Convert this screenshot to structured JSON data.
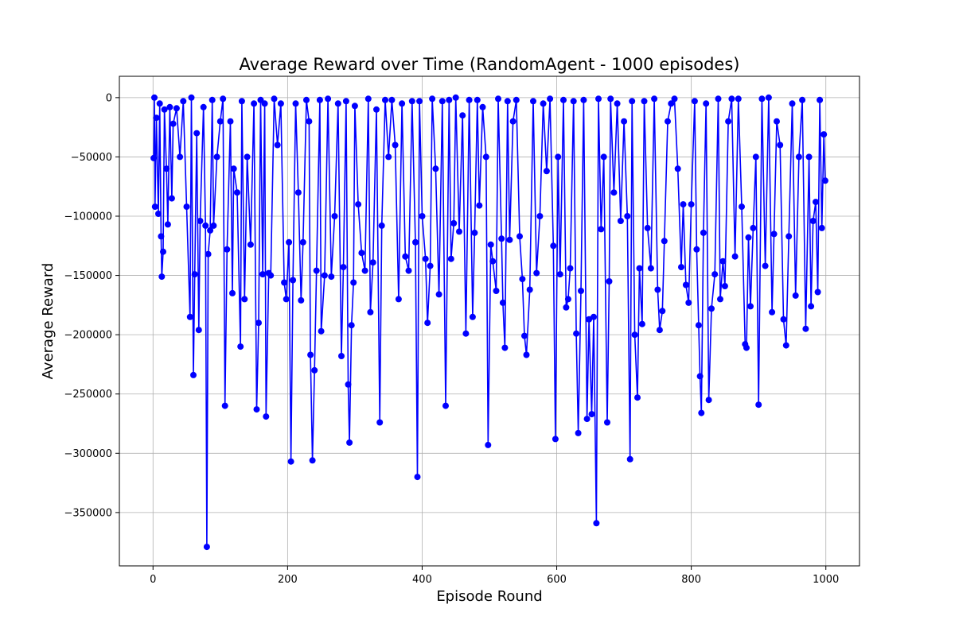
{
  "chart_data": {
    "type": "line",
    "title": "Average Reward over Time (RandomAgent - 1000 episodes)",
    "xlabel": "Episode Round",
    "ylabel": "Average Reward",
    "xlim": [
      -50,
      1050
    ],
    "ylim": [
      -395000,
      18000
    ],
    "xticks": [
      0,
      200,
      400,
      600,
      800,
      1000
    ],
    "yticks": [
      0,
      -50000,
      -100000,
      -150000,
      -200000,
      -250000,
      -300000,
      -350000
    ],
    "xtick_labels": [
      "0",
      "200",
      "400",
      "600",
      "800",
      "1000"
    ],
    "ytick_labels": [
      "0",
      "−50000",
      "−100000",
      "−150000",
      "−200000",
      "−250000",
      "−300000",
      "−350000"
    ],
    "grid": true,
    "marker": "o",
    "series": [
      {
        "color": "#0000ff",
        "sampled_points": [
          [
            1,
            -51000
          ],
          [
            2,
            0
          ],
          [
            3,
            -92000
          ],
          [
            5,
            -17000
          ],
          [
            8,
            -98000
          ],
          [
            10,
            -5000
          ],
          [
            12,
            -117000
          ],
          [
            13,
            -151000
          ],
          [
            15,
            -130000
          ],
          [
            17,
            -10000
          ],
          [
            20,
            -60000
          ],
          [
            22,
            -107000
          ],
          [
            25,
            -8000
          ],
          [
            28,
            -85000
          ],
          [
            30,
            -22000
          ],
          [
            35,
            -9000
          ],
          [
            40,
            -50000
          ],
          [
            45,
            -3000
          ],
          [
            50,
            -92000
          ],
          [
            55,
            -185000
          ],
          [
            57,
            0
          ],
          [
            60,
            -234000
          ],
          [
            62,
            -149000
          ],
          [
            65,
            -30000
          ],
          [
            68,
            -196000
          ],
          [
            70,
            -104000
          ],
          [
            75,
            -8000
          ],
          [
            78,
            -108000
          ],
          [
            80,
            -379000
          ],
          [
            82,
            -132000
          ],
          [
            85,
            -112000
          ],
          [
            88,
            -2000
          ],
          [
            90,
            -108000
          ],
          [
            95,
            -50000
          ],
          [
            100,
            -20000
          ],
          [
            104,
            -1000
          ],
          [
            107,
            -260000
          ],
          [
            110,
            -128000
          ],
          [
            115,
            -20000
          ],
          [
            118,
            -165000
          ],
          [
            120,
            -60000
          ],
          [
            125,
            -80000
          ],
          [
            130,
            -210000
          ],
          [
            132,
            -3000
          ],
          [
            136,
            -170000
          ],
          [
            140,
            -50000
          ],
          [
            145,
            -124000
          ],
          [
            150,
            -5000
          ],
          [
            154,
            -263000
          ],
          [
            157,
            -190000
          ],
          [
            160,
            -2000
          ],
          [
            163,
            -149000
          ],
          [
            166,
            -5000
          ],
          [
            168,
            -269000
          ],
          [
            172,
            -148000
          ],
          [
            175,
            -150000
          ],
          [
            180,
            -1000
          ],
          [
            185,
            -40000
          ],
          [
            190,
            -5000
          ],
          [
            195,
            -156000
          ],
          [
            198,
            -170000
          ],
          [
            202,
            -122000
          ],
          [
            205,
            -307000
          ],
          [
            208,
            -154000
          ],
          [
            212,
            -5000
          ],
          [
            216,
            -80000
          ],
          [
            220,
            -171000
          ],
          [
            223,
            -122000
          ],
          [
            228,
            -2000
          ],
          [
            232,
            -20000
          ],
          [
            234,
            -217000
          ],
          [
            237,
            -306000
          ],
          [
            240,
            -230000
          ],
          [
            243,
            -146000
          ],
          [
            248,
            -2000
          ],
          [
            250,
            -197000
          ],
          [
            255,
            -150000
          ],
          [
            260,
            -1000
          ],
          [
            265,
            -151000
          ],
          [
            270,
            -100000
          ],
          [
            275,
            -5000
          ],
          [
            280,
            -218000
          ],
          [
            283,
            -143000
          ],
          [
            287,
            -3000
          ],
          [
            290,
            -242000
          ],
          [
            292,
            -291000
          ],
          [
            295,
            -192000
          ],
          [
            298,
            -156000
          ],
          [
            300,
            -7000
          ],
          [
            305,
            -90000
          ],
          [
            310,
            -131000
          ],
          [
            315,
            -146000
          ],
          [
            320,
            -1000
          ],
          [
            323,
            -181000
          ],
          [
            327,
            -139000
          ],
          [
            332,
            -10000
          ],
          [
            337,
            -274000
          ],
          [
            340,
            -108000
          ],
          [
            345,
            -2000
          ],
          [
            350,
            -50000
          ],
          [
            355,
            -2000
          ],
          [
            360,
            -40000
          ],
          [
            365,
            -170000
          ],
          [
            370,
            -5000
          ],
          [
            375,
            -134000
          ],
          [
            380,
            -146000
          ],
          [
            385,
            -3000
          ],
          [
            390,
            -122000
          ],
          [
            393,
            -320000
          ],
          [
            396,
            -3000
          ],
          [
            400,
            -100000
          ],
          [
            405,
            -136000
          ],
          [
            408,
            -190000
          ],
          [
            412,
            -142000
          ],
          [
            415,
            -1000
          ],
          [
            420,
            -60000
          ],
          [
            425,
            -166000
          ],
          [
            430,
            -3000
          ],
          [
            435,
            -260000
          ],
          [
            440,
            -2000
          ],
          [
            443,
            -136000
          ],
          [
            447,
            -106000
          ],
          [
            450,
            0
          ],
          [
            455,
            -113000
          ],
          [
            460,
            -15000
          ],
          [
            465,
            -199000
          ],
          [
            470,
            -2000
          ],
          [
            475,
            -185000
          ],
          [
            478,
            -114000
          ],
          [
            482,
            -2000
          ],
          [
            485,
            -91000
          ],
          [
            490,
            -8000
          ],
          [
            495,
            -50000
          ],
          [
            498,
            -293000
          ],
          [
            502,
            -124000
          ],
          [
            505,
            -138000
          ],
          [
            510,
            -163000
          ],
          [
            513,
            -1000
          ],
          [
            518,
            -119000
          ],
          [
            520,
            -173000
          ],
          [
            523,
            -211000
          ],
          [
            527,
            -3000
          ],
          [
            530,
            -120000
          ],
          [
            535,
            -20000
          ],
          [
            540,
            -2000
          ],
          [
            545,
            -117000
          ],
          [
            549,
            -153000
          ],
          [
            552,
            -201000
          ],
          [
            555,
            -217000
          ],
          [
            560,
            -162000
          ],
          [
            565,
            -3000
          ],
          [
            570,
            -148000
          ],
          [
            575,
            -100000
          ],
          [
            580,
            -5000
          ],
          [
            585,
            -62000
          ],
          [
            590,
            -1000
          ],
          [
            595,
            -125000
          ],
          [
            598,
            -288000
          ],
          [
            602,
            -50000
          ],
          [
            605,
            -149000
          ],
          [
            610,
            -2000
          ],
          [
            614,
            -177000
          ],
          [
            617,
            -170000
          ],
          [
            620,
            -144000
          ],
          [
            625,
            -3000
          ],
          [
            629,
            -199000
          ],
          [
            632,
            -283000
          ],
          [
            636,
            -163000
          ],
          [
            640,
            -2000
          ],
          [
            645,
            -271000
          ],
          [
            648,
            -187000
          ],
          [
            652,
            -267000
          ],
          [
            655,
            -185000
          ],
          [
            659,
            -359000
          ],
          [
            662,
            -1000
          ],
          [
            666,
            -111000
          ],
          [
            670,
            -50000
          ],
          [
            675,
            -274000
          ],
          [
            678,
            -155000
          ],
          [
            680,
            -1000
          ],
          [
            685,
            -80000
          ],
          [
            690,
            -5000
          ],
          [
            695,
            -104000
          ],
          [
            700,
            -20000
          ],
          [
            705,
            -100000
          ],
          [
            709,
            -305000
          ],
          [
            712,
            -3000
          ],
          [
            716,
            -200000
          ],
          [
            720,
            -253000
          ],
          [
            723,
            -144000
          ],
          [
            727,
            -191000
          ],
          [
            730,
            -3000
          ],
          [
            735,
            -110000
          ],
          [
            740,
            -144000
          ],
          [
            745,
            -1000
          ],
          [
            750,
            -162000
          ],
          [
            753,
            -196000
          ],
          [
            757,
            -180000
          ],
          [
            760,
            -121000
          ],
          [
            765,
            -20000
          ],
          [
            770,
            -5000
          ],
          [
            775,
            -1000
          ],
          [
            780,
            -60000
          ],
          [
            785,
            -143000
          ],
          [
            788,
            -90000
          ],
          [
            792,
            -158000
          ],
          [
            796,
            -173000
          ],
          [
            800,
            -90000
          ],
          [
            805,
            -3000
          ],
          [
            808,
            -128000
          ],
          [
            811,
            -192000
          ],
          [
            813,
            -235000
          ],
          [
            815,
            -266000
          ],
          [
            818,
            -114000
          ],
          [
            822,
            -5000
          ],
          [
            826,
            -255000
          ],
          [
            830,
            -178000
          ],
          [
            835,
            -149000
          ],
          [
            840,
            -1000
          ],
          [
            843,
            -170000
          ],
          [
            847,
            -138000
          ],
          [
            850,
            -159000
          ],
          [
            855,
            -20000
          ],
          [
            860,
            -1000
          ],
          [
            865,
            -134000
          ],
          [
            870,
            -1000
          ],
          [
            875,
            -92000
          ],
          [
            880,
            -208000
          ],
          [
            882,
            -211000
          ],
          [
            885,
            -118000
          ],
          [
            888,
            -176000
          ],
          [
            892,
            -110000
          ],
          [
            896,
            -50000
          ],
          [
            900,
            -259000
          ],
          [
            905,
            -1000
          ],
          [
            910,
            -142000
          ],
          [
            915,
            0
          ],
          [
            920,
            -181000
          ],
          [
            923,
            -115000
          ],
          [
            927,
            -20000
          ],
          [
            932,
            -40000
          ],
          [
            937,
            -187000
          ],
          [
            941,
            -209000
          ],
          [
            945,
            -117000
          ],
          [
            950,
            -5000
          ],
          [
            955,
            -167000
          ],
          [
            960,
            -50000
          ],
          [
            965,
            -2000
          ],
          [
            970,
            -195000
          ],
          [
            975,
            -50000
          ],
          [
            978,
            -176000
          ],
          [
            981,
            -104000
          ],
          [
            985,
            -88000
          ],
          [
            988,
            -164000
          ],
          [
            991,
            -2000
          ],
          [
            994,
            -110000
          ],
          [
            997,
            -31000
          ],
          [
            999,
            -70000
          ]
        ]
      }
    ]
  }
}
